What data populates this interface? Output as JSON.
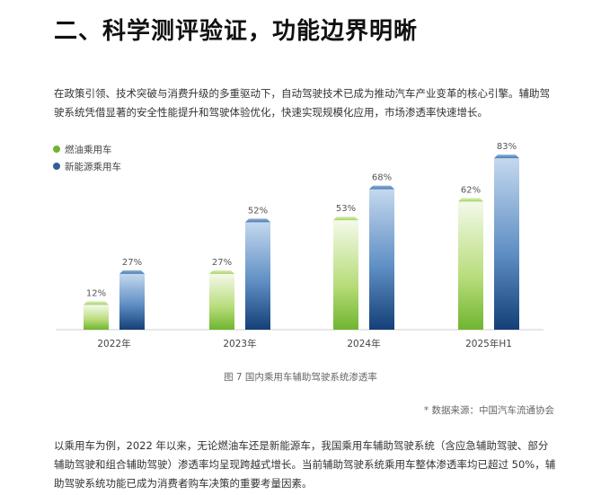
{
  "title": "二、科学测评验证，功能边界明晰",
  "paragraph1": "在政策引领、技术突破与消费升级的多重驱动下，自动驾驶技术已成为推动汽车产业变革的核心引擎。辅助驾驶系统凭借显著的安全性能提升和驾驶体验优化，快速实现规模化应用，市场渗透率快速增长。",
  "caption": "图 7 国内乘用车辅助驾驶系统渗透率",
  "source": "* 数据来源：中国汽车流通协会",
  "paragraph2": "以乘用车为例，2022 年以来，无论燃油车还是新能源车，我国乘用车辅助驾驶系统（含应急辅助驾驶、部分辅助驾驶和组合辅助驾驶）渗透率均呈现跨越式增长。当前辅助驾驶系统乘用车整体渗透率均已超过 50%，辅助驾驶系统功能已成为消费者购车决策的重要考量因素。",
  "chart_data": {
    "type": "bar",
    "categories": [
      "2022年",
      "2023年",
      "2024年",
      "2025年H1"
    ],
    "series": [
      {
        "name": "燃油乘用车",
        "values": [
          12,
          27,
          53,
          62
        ],
        "labels": [
          "12%",
          "27%",
          "53%",
          "62%"
        ],
        "color": "#8cc63f"
      },
      {
        "name": "新能源乘用车",
        "values": [
          27,
          52,
          68,
          83
        ],
        "labels": [
          "27%",
          "52%",
          "68%",
          "83%"
        ],
        "color": "#2f5f9a"
      }
    ],
    "ylim": [
      0,
      100
    ],
    "legend": "top-left",
    "grid": false
  }
}
